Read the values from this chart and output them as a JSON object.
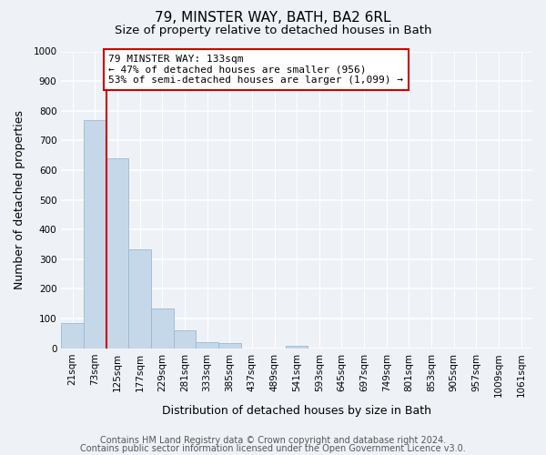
{
  "title": "79, MINSTER WAY, BATH, BA2 6RL",
  "subtitle": "Size of property relative to detached houses in Bath",
  "xlabel": "Distribution of detached houses by size in Bath",
  "ylabel": "Number of detached properties",
  "bar_color": "#c5d8ea",
  "bar_edge_color": "#9ab8d0",
  "bin_labels": [
    "21sqm",
    "73sqm",
    "125sqm",
    "177sqm",
    "229sqm",
    "281sqm",
    "333sqm",
    "385sqm",
    "437sqm",
    "489sqm",
    "541sqm",
    "593sqm",
    "645sqm",
    "697sqm",
    "749sqm",
    "801sqm",
    "853sqm",
    "905sqm",
    "957sqm",
    "1009sqm",
    "1061sqm"
  ],
  "bar_heights": [
    85,
    770,
    640,
    333,
    135,
    60,
    22,
    18,
    0,
    0,
    8,
    0,
    0,
    0,
    0,
    0,
    0,
    0,
    0,
    0,
    0
  ],
  "ylim": [
    0,
    1000
  ],
  "yticks": [
    0,
    100,
    200,
    300,
    400,
    500,
    600,
    700,
    800,
    900,
    1000
  ],
  "vline_x": 2.5,
  "vline_color": "#cc0000",
  "annotation_text": "79 MINSTER WAY: 133sqm\n← 47% of detached houses are smaller (956)\n53% of semi-detached houses are larger (1,099) →",
  "annotation_box_color": "#ffffff",
  "annotation_box_edge": "#cc0000",
  "footer_line1": "Contains HM Land Registry data © Crown copyright and database right 2024.",
  "footer_line2": "Contains public sector information licensed under the Open Government Licence v3.0.",
  "background_color": "#eef2f7",
  "plot_bg_color": "#eef2f7",
  "grid_color": "#ffffff",
  "title_fontsize": 11,
  "subtitle_fontsize": 9.5,
  "axis_label_fontsize": 9,
  "tick_fontsize": 7.5,
  "annotation_fontsize": 8,
  "footer_fontsize": 7
}
